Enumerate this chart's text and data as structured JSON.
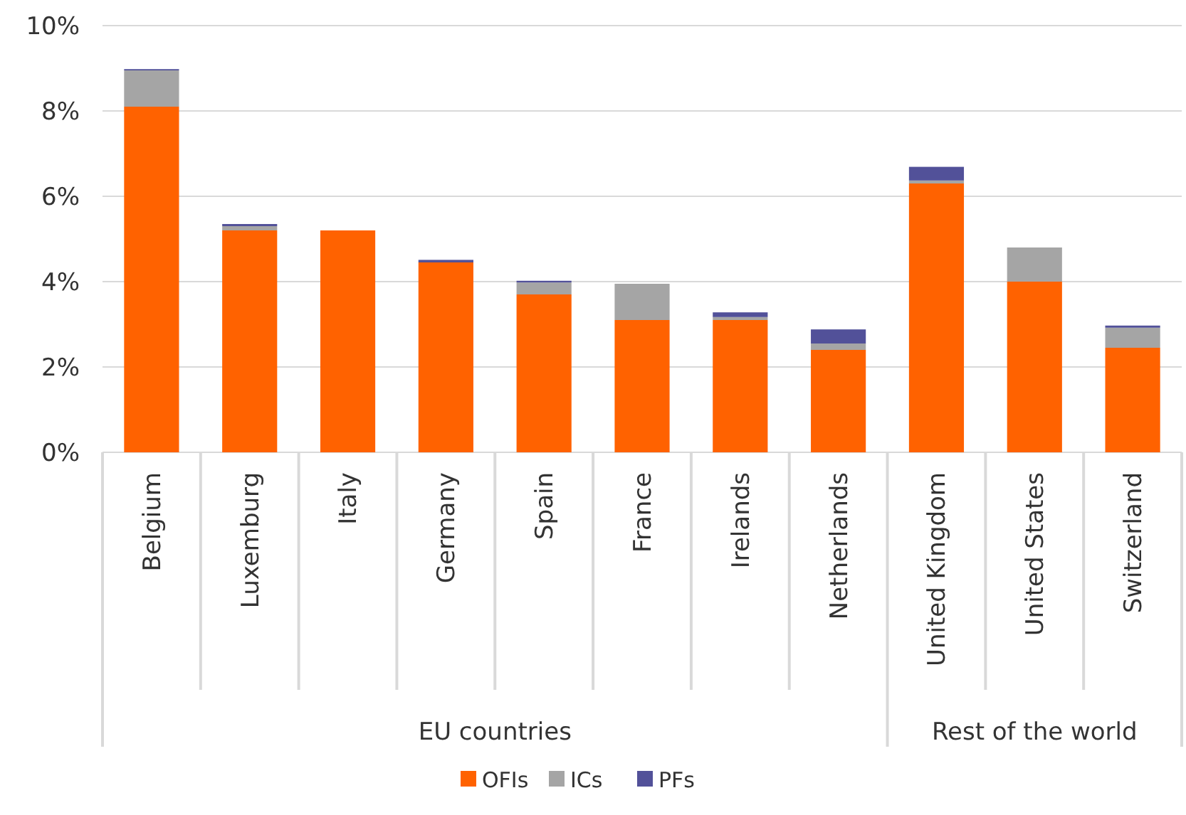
{
  "chart_data": {
    "type": "bar",
    "stacked": true,
    "categories": [
      "Belgium",
      "Luxemburg",
      "Italy",
      "Germany",
      "Spain",
      "France",
      "Irelands",
      "Netherlands",
      "United Kingdom",
      "United States",
      "Switzerland"
    ],
    "series": [
      {
        "name": "OFIs",
        "color": "#ff6200",
        "values": [
          8.1,
          5.2,
          5.2,
          4.45,
          3.7,
          3.1,
          3.1,
          2.4,
          6.3,
          4.0,
          2.45
        ]
      },
      {
        "name": "ICs",
        "color": "#a5a5a5",
        "values": [
          0.85,
          0.1,
          0,
          0,
          0.28,
          0.85,
          0.07,
          0.15,
          0.07,
          0.8,
          0.47
        ]
      },
      {
        "name": "PFs",
        "color": "#525199",
        "values": [
          0.03,
          0.05,
          0,
          0.06,
          0.04,
          0,
          0.11,
          0.33,
          0.32,
          0,
          0.05
        ]
      }
    ],
    "ylim": [
      0,
      10
    ],
    "yticks": [
      {
        "value": 0,
        "label": "0%"
      },
      {
        "value": 2,
        "label": "2%"
      },
      {
        "value": 4,
        "label": "4%"
      },
      {
        "value": 6,
        "label": "6%"
      },
      {
        "value": 8,
        "label": "8%"
      },
      {
        "value": 10,
        "label": "10%"
      }
    ],
    "grid": "y",
    "legend": "bottom",
    "annotations": [
      "EU countries",
      "Rest of the world"
    ]
  }
}
